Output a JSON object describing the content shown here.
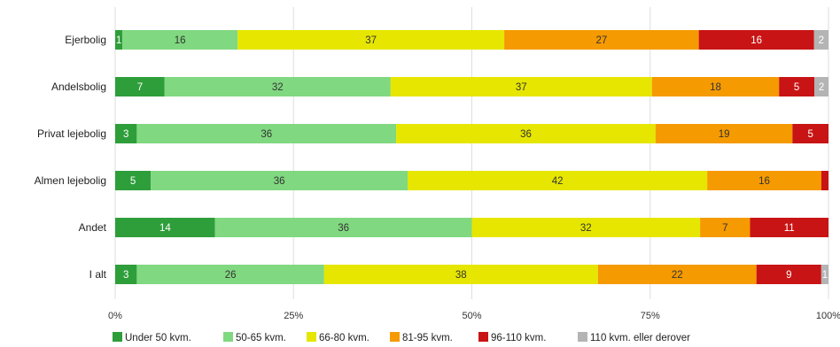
{
  "chart_data": {
    "type": "bar",
    "orientation": "horizontal",
    "stacked": true,
    "normalized": true,
    "categories": [
      "Ejerbolig",
      "Andelsbolig",
      "Privat lejebolig",
      "Almen lejebolig",
      "Andet",
      "I alt"
    ],
    "series": [
      {
        "name": "Under 50 kvm.",
        "color": "#2e9e3a",
        "values": [
          1,
          7,
          3,
          5,
          14,
          3
        ]
      },
      {
        "name": "50-65 kvm.",
        "color": "#80d880",
        "values": [
          16,
          32,
          36,
          36,
          36,
          26
        ]
      },
      {
        "name": "66-80 kvm.",
        "color": "#e6e600",
        "values": [
          37,
          37,
          36,
          42,
          32,
          38
        ]
      },
      {
        "name": "81-95 kvm.",
        "color": "#f59a00",
        "values": [
          27,
          18,
          19,
          16,
          7,
          22
        ]
      },
      {
        "name": "96-110 kvm.",
        "color": "#c81414",
        "values": [
          16,
          5,
          5,
          1,
          11,
          9
        ]
      },
      {
        "name": "110 kvm. eller derover",
        "color": "#b4b4b4",
        "values": [
          2,
          2,
          0,
          0,
          0,
          1
        ]
      }
    ],
    "segment_labels": [
      [
        "1",
        "16",
        "37",
        "27",
        "16",
        "2"
      ],
      [
        "7",
        "32",
        "37",
        "18",
        "5",
        "2"
      ],
      [
        "3",
        "36",
        "36",
        "19",
        "5",
        ""
      ],
      [
        "5",
        "36",
        "42",
        "16",
        "",
        ""
      ],
      [
        "14",
        "36",
        "32",
        "7",
        "11",
        ""
      ],
      [
        "3",
        "26",
        "38",
        "22",
        "9",
        "1"
      ]
    ],
    "x_ticks": [
      "0%",
      "25%",
      "50%",
      "75%",
      "100%"
    ],
    "xlim": [
      0,
      100
    ],
    "legend_position": "bottom",
    "grid": true
  }
}
